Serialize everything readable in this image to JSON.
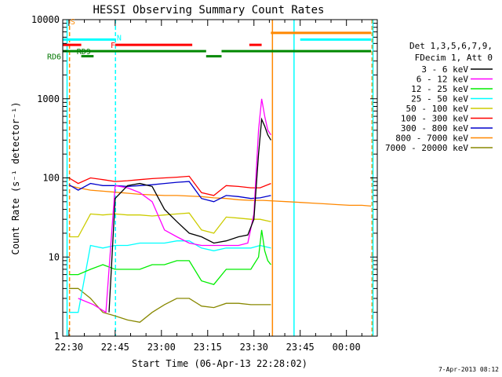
{
  "chart_data": {
    "type": "line",
    "title": "HESSI Observing Summary Count Rates",
    "xlabel": "Start Time (06-Apr-13 22:28:02)",
    "ylabel": "Count Rate (s⁻¹ detector⁻¹)",
    "yscale": "log",
    "ylim": [
      1,
      10000
    ],
    "xlim_minutes": [
      -2,
      100
    ],
    "x_tick_labels": [
      "22:30",
      "22:45",
      "23:00",
      "23:15",
      "23:30",
      "23:45",
      "00:00"
    ],
    "x_tick_minutes": [
      0,
      15,
      30,
      45,
      60,
      75,
      90
    ],
    "y_tick_labels": [
      "1",
      "10",
      "100",
      "1000",
      "10000"
    ],
    "y_tick_values": [
      1,
      10,
      100,
      1000,
      10000
    ],
    "legend": {
      "placement": "right",
      "header": [
        "Det 1,3,5,6,7,9,",
        "FDecim 1, Att 0"
      ]
    },
    "timestamp": "7-Apr-2013 08:12",
    "series": [
      {
        "name": "3 - 6 keV",
        "color": "#000000",
        "x": [
          13,
          15,
          19,
          23,
          27,
          31,
          35,
          39,
          43,
          47,
          51,
          55,
          58,
          60,
          61.5,
          62.5,
          63.5,
          64.5,
          65.5
        ],
        "y": [
          2,
          55,
          80,
          85,
          78,
          40,
          28,
          20,
          18,
          15,
          16,
          18,
          19,
          30,
          200,
          550,
          450,
          350,
          300
        ]
      },
      {
        "name": "6 - 12 keV",
        "color": "#ff00ff",
        "x": [
          3,
          8,
          12,
          15,
          19,
          23,
          27,
          31,
          35,
          39,
          43,
          47,
          51,
          55,
          58,
          60,
          61.5,
          62.5,
          63.5,
          64.5,
          65.5
        ],
        "y": [
          3,
          2.5,
          2,
          80,
          75,
          65,
          50,
          22,
          18,
          15,
          14,
          14,
          14,
          14,
          15,
          35,
          400,
          1000,
          600,
          400,
          350
        ]
      },
      {
        "name": "12 - 25 keV",
        "color": "#00ee00",
        "x": [
          0,
          3,
          7,
          11,
          15,
          19,
          23,
          27,
          31,
          35,
          39,
          43,
          47,
          51,
          55,
          59,
          61.5,
          62.5,
          63.5,
          64.5,
          65.5
        ],
        "y": [
          6,
          6,
          7,
          8,
          7,
          7,
          7,
          8,
          8,
          9,
          9,
          5,
          4.5,
          7,
          7,
          7,
          10,
          22,
          12,
          9,
          8
        ]
      },
      {
        "name": "25 - 50 keV",
        "color": "#00ffff",
        "x": [
          0,
          3,
          7,
          11,
          15,
          19,
          23,
          27,
          31,
          35,
          39,
          43,
          47,
          51,
          55,
          59,
          62,
          65.5
        ],
        "y": [
          2,
          2,
          14,
          13,
          14,
          14,
          15,
          15,
          15,
          16,
          16,
          13,
          12,
          13,
          13,
          13,
          14,
          13
        ]
      },
      {
        "name": "50 - 100 keV",
        "color": "#cccc00",
        "x": [
          0,
          3,
          7,
          11,
          15,
          19,
          23,
          27,
          31,
          35,
          39,
          43,
          47,
          51,
          55,
          59,
          62,
          65.5
        ],
        "y": [
          18,
          18,
          35,
          34,
          35,
          34,
          34,
          33,
          34,
          35,
          36,
          22,
          20,
          32,
          31,
          30,
          30,
          28
        ]
      },
      {
        "name": "100 - 300 keV",
        "color": "#ff0000",
        "x": [
          0,
          3,
          7,
          11,
          15,
          19,
          23,
          27,
          31,
          35,
          39,
          43,
          47,
          51,
          55,
          59,
          62,
          65.5
        ],
        "y": [
          100,
          85,
          100,
          95,
          90,
          92,
          95,
          98,
          100,
          102,
          105,
          65,
          60,
          80,
          78,
          75,
          75,
          85
        ]
      },
      {
        "name": "300 - 800 keV",
        "color": "#0000cc",
        "x": [
          0,
          3,
          7,
          11,
          15,
          19,
          23,
          27,
          31,
          35,
          39,
          43,
          47,
          51,
          55,
          59,
          62,
          65.5
        ],
        "y": [
          82,
          70,
          85,
          80,
          80,
          78,
          80,
          82,
          85,
          88,
          90,
          55,
          50,
          60,
          58,
          55,
          56,
          60
        ]
      },
      {
        "name": "800 - 7000 keV",
        "color": "#ff8800",
        "x": [
          0,
          3,
          7,
          11,
          15,
          19,
          23,
          27,
          31,
          35,
          39,
          43,
          47,
          51,
          55,
          59,
          63,
          67,
          71,
          75,
          79,
          83,
          87,
          91,
          95,
          98
        ],
        "y": [
          80,
          75,
          70,
          68,
          66,
          64,
          62,
          61,
          60,
          60,
          59,
          58,
          56,
          55,
          53,
          52,
          52,
          51,
          50,
          49,
          48,
          47,
          46,
          45,
          45,
          44
        ]
      },
      {
        "name": "7000 - 20000 keV",
        "color": "#888800",
        "x": [
          0,
          3,
          7,
          11,
          15,
          19,
          23,
          27,
          31,
          35,
          39,
          43,
          47,
          51,
          55,
          59,
          62,
          65.5
        ],
        "y": [
          4,
          4,
          3,
          2,
          1.8,
          1.6,
          1.5,
          2,
          2.5,
          3,
          3,
          2.4,
          2.3,
          2.6,
          2.6,
          2.5,
          2.5,
          2.5
        ]
      }
    ],
    "top_annotations": {
      "markers": [
        {
          "label": "S",
          "color": "#ff8800",
          "x_minutes": 0,
          "level": 9500
        },
        {
          "label": "N",
          "color": "#00ffff",
          "x_minutes": 15,
          "level": 6000
        },
        {
          "label": "F",
          "color": "#ff0000",
          "x_minutes": 13,
          "level": 4800
        },
        {
          "label": "RD9",
          "color": "#007700",
          "x_minutes": 2,
          "level": 4000
        },
        {
          "label": "RD6",
          "color": "#007700",
          "x_minutes": -0.5,
          "level": 3450
        }
      ],
      "bars": [
        {
          "color": "#00ffff",
          "from": -2,
          "to": 15,
          "level": 5600
        },
        {
          "color": "#00ffff",
          "from": 75,
          "to": 98,
          "level": 5600
        },
        {
          "color": "#ff8800",
          "from": 65.5,
          "to": 98,
          "level": 6800
        },
        {
          "color": "#ff0000",
          "from": -2,
          "to": 4,
          "level": 4800
        },
        {
          "color": "#ff0000",
          "from": 15,
          "to": 40,
          "level": 4800
        },
        {
          "color": "#ff0000",
          "from": 58.5,
          "to": 62.5,
          "level": 4800
        },
        {
          "color": "#008800",
          "from": -2,
          "to": 44.5,
          "level": 4000
        },
        {
          "color": "#008800",
          "from": 49.5,
          "to": 98,
          "level": 4000
        },
        {
          "color": "#008800",
          "from": 4,
          "to": 8,
          "level": 3450
        },
        {
          "color": "#008800",
          "from": 44.5,
          "to": 49.5,
          "level": 3450
        }
      ],
      "vlines": [
        {
          "color": "#00ffff",
          "x_minutes": -0.6,
          "dashed": false
        },
        {
          "color": "#ff8800",
          "x_minutes": 0.2,
          "dashed": true
        },
        {
          "color": "#00ffff",
          "x_minutes": 15.1,
          "dashed": true
        },
        {
          "color": "#ff8800",
          "x_minutes": 66,
          "dashed": false
        },
        {
          "color": "#00ffff",
          "x_minutes": 73,
          "dashed": false
        },
        {
          "color": "#ff8800",
          "x_minutes": 98.3,
          "dashed": true
        },
        {
          "color": "#00ffff",
          "x_minutes": 98.6,
          "dashed": false
        }
      ]
    }
  }
}
